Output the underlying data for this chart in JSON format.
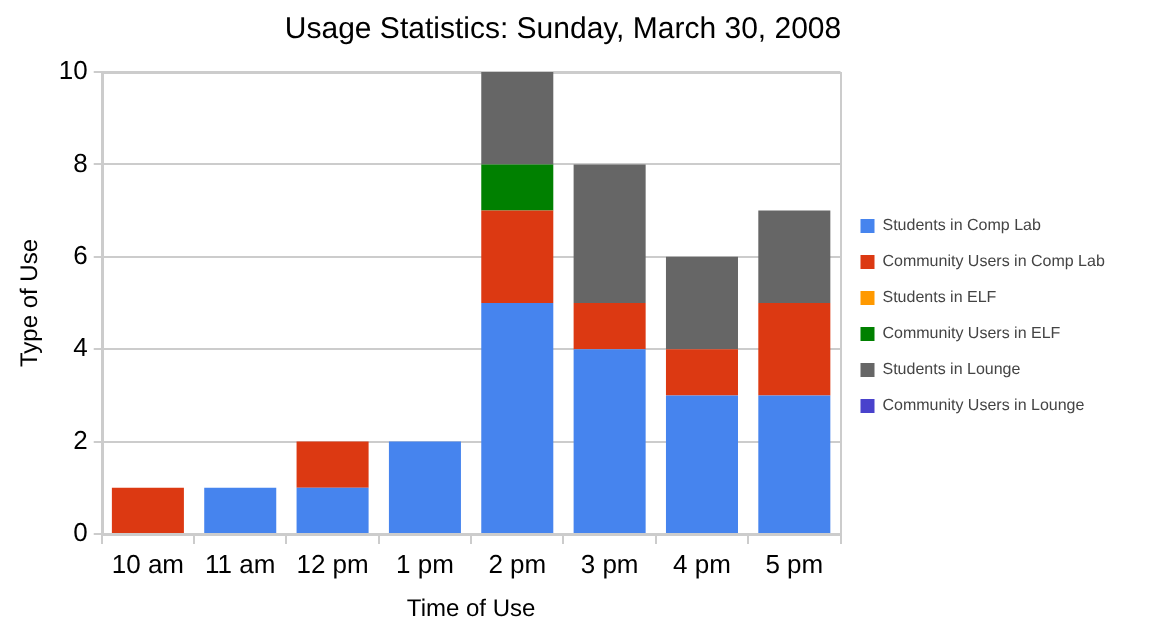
{
  "chart_data": {
    "type": "bar",
    "title": "Usage Statistics: Sunday, March 30, 2008",
    "xlabel": "Time of Use",
    "ylabel": "Type of Use",
    "categories": [
      "10 am",
      "11 am",
      "12 pm",
      "1 pm",
      "2 pm",
      "3 pm",
      "4 pm",
      "5 pm"
    ],
    "series": [
      {
        "name": "Students in Comp Lab",
        "color": "#4684ee",
        "values": [
          0,
          1,
          1,
          2,
          5,
          4,
          3,
          3
        ]
      },
      {
        "name": "Community Users in Comp Lab",
        "color": "#dc3912",
        "values": [
          1,
          0,
          1,
          0,
          2,
          1,
          1,
          2
        ]
      },
      {
        "name": "Students in ELF",
        "color": "#ff9900",
        "values": [
          0,
          0,
          0,
          0,
          0,
          0,
          0,
          0
        ]
      },
      {
        "name": "Community Users in ELF",
        "color": "#008000",
        "values": [
          0,
          0,
          0,
          0,
          1,
          0,
          0,
          0
        ]
      },
      {
        "name": "Students in Lounge",
        "color": "#666666",
        "values": [
          0,
          0,
          0,
          0,
          2,
          3,
          2,
          2
        ]
      },
      {
        "name": "Community Users in Lounge",
        "color": "#4942cc",
        "values": [
          0,
          0,
          0,
          0,
          0,
          0,
          0,
          0
        ]
      }
    ],
    "stacked": true,
    "ylim": [
      0,
      10
    ],
    "yticks": [
      0,
      2,
      4,
      6,
      8,
      10
    ],
    "grid": "y",
    "legend": "right"
  }
}
